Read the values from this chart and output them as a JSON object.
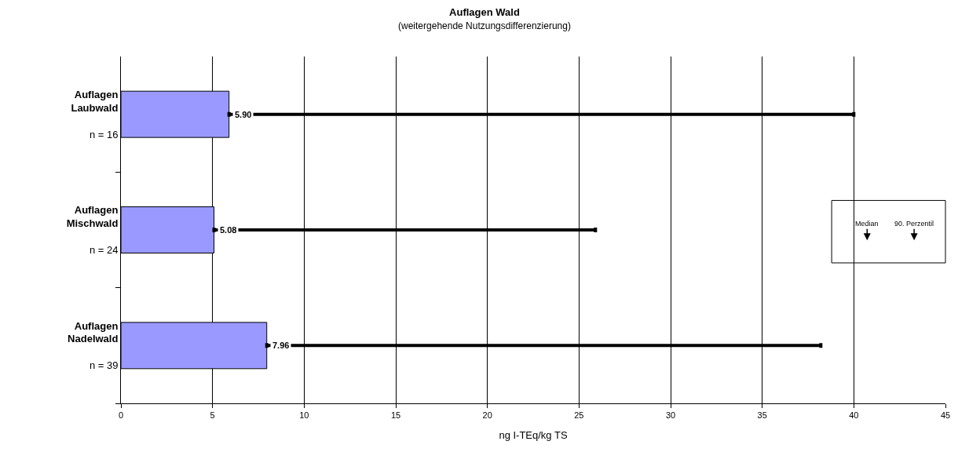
{
  "chart_data": {
    "type": "bar",
    "orientation": "horizontal",
    "title": "Auflagen Wald",
    "subtitle": "(weitergehende Nutzungsdifferenzierung)",
    "xlabel": "ng I-TEq/kg TS",
    "categories": [
      "Auflagen\nLaubwald\nn = 16",
      "Auflagen\nMischwald\nn = 24",
      "Auflagen\nNadelwald\nn = 39"
    ],
    "values": [
      5.9,
      5.08,
      7.96
    ],
    "value_labels": [
      "5.90",
      "5.08",
      "7.96"
    ],
    "errors": [
      [
        5.9,
        40.0
      ],
      [
        5.08,
        25.9
      ],
      [
        7.96,
        38.2
      ]
    ],
    "color": "#9999ff",
    "xlim": [
      0,
      45
    ],
    "xticks": [
      0,
      5,
      10,
      15,
      20,
      25,
      30,
      35,
      40,
      45
    ],
    "grid": "x",
    "annotations": [
      "Median",
      "90. Perzentil"
    ]
  }
}
